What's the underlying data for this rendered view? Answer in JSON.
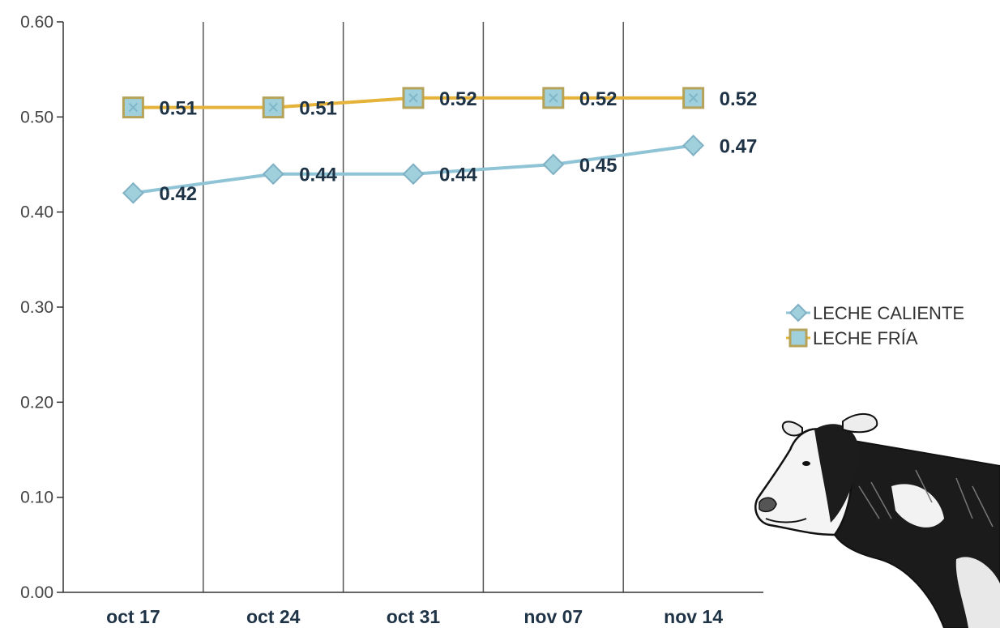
{
  "chart_data": {
    "type": "line",
    "title": "",
    "xlabel": "",
    "ylabel": "",
    "categories": [
      "oct 17",
      "oct 24",
      "oct 31",
      "nov 07",
      "nov 14"
    ],
    "ylim": [
      0,
      0.6
    ],
    "yticks": [
      "0.00",
      "0.10",
      "0.20",
      "0.30",
      "0.40",
      "0.50",
      "0.60"
    ],
    "grid": "vertical",
    "legend_position": "right",
    "series": [
      {
        "name": "LECHE CALIENTE",
        "values": [
          0.42,
          0.44,
          0.44,
          0.45,
          0.47
        ],
        "labels": [
          "0.42",
          "0.44",
          "0.44",
          "0.45",
          "0.47"
        ],
        "color": "#8fc3d6",
        "marker": "diamond"
      },
      {
        "name": "LECHE FRÍA",
        "values": [
          0.51,
          0.51,
          0.52,
          0.52,
          0.52
        ],
        "labels": [
          "0.51",
          "0.51",
          "0.52",
          "0.52",
          "0.52"
        ],
        "color": "#e5b33a",
        "marker": "square"
      }
    ]
  },
  "decoration": {
    "icon": "cow-illustration"
  }
}
